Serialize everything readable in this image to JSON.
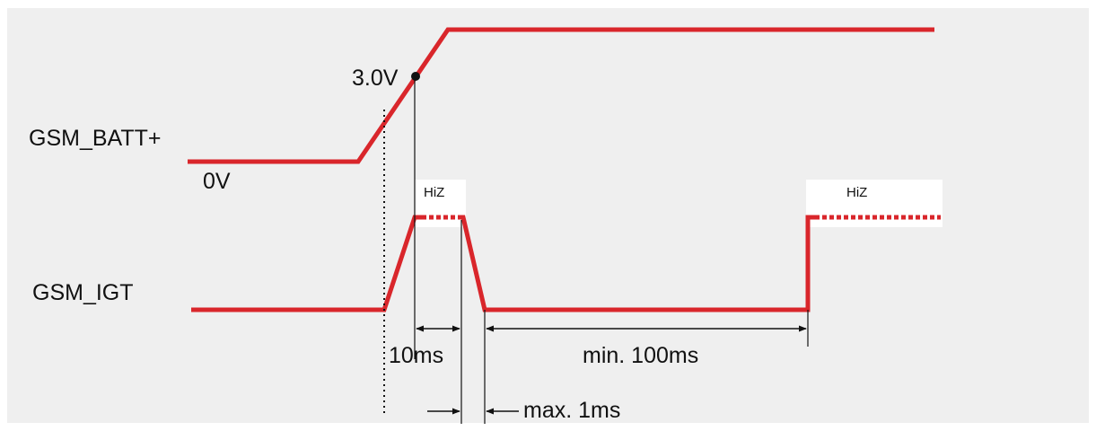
{
  "colors": {
    "background": "#efefef",
    "signal": "#d9262b",
    "ink": "#111111",
    "hiz_box": "#ffffff"
  },
  "signals": {
    "batt": "GSM_BATT+",
    "igt": "GSM_IGT"
  },
  "labels": {
    "zero_volt": "0V",
    "threshold": "3.0V",
    "hiz_1": "HiZ",
    "hiz_2": "HiZ",
    "t_10ms": "10ms",
    "t_min100": "min. 100ms",
    "t_max1": "max. 1ms"
  }
}
